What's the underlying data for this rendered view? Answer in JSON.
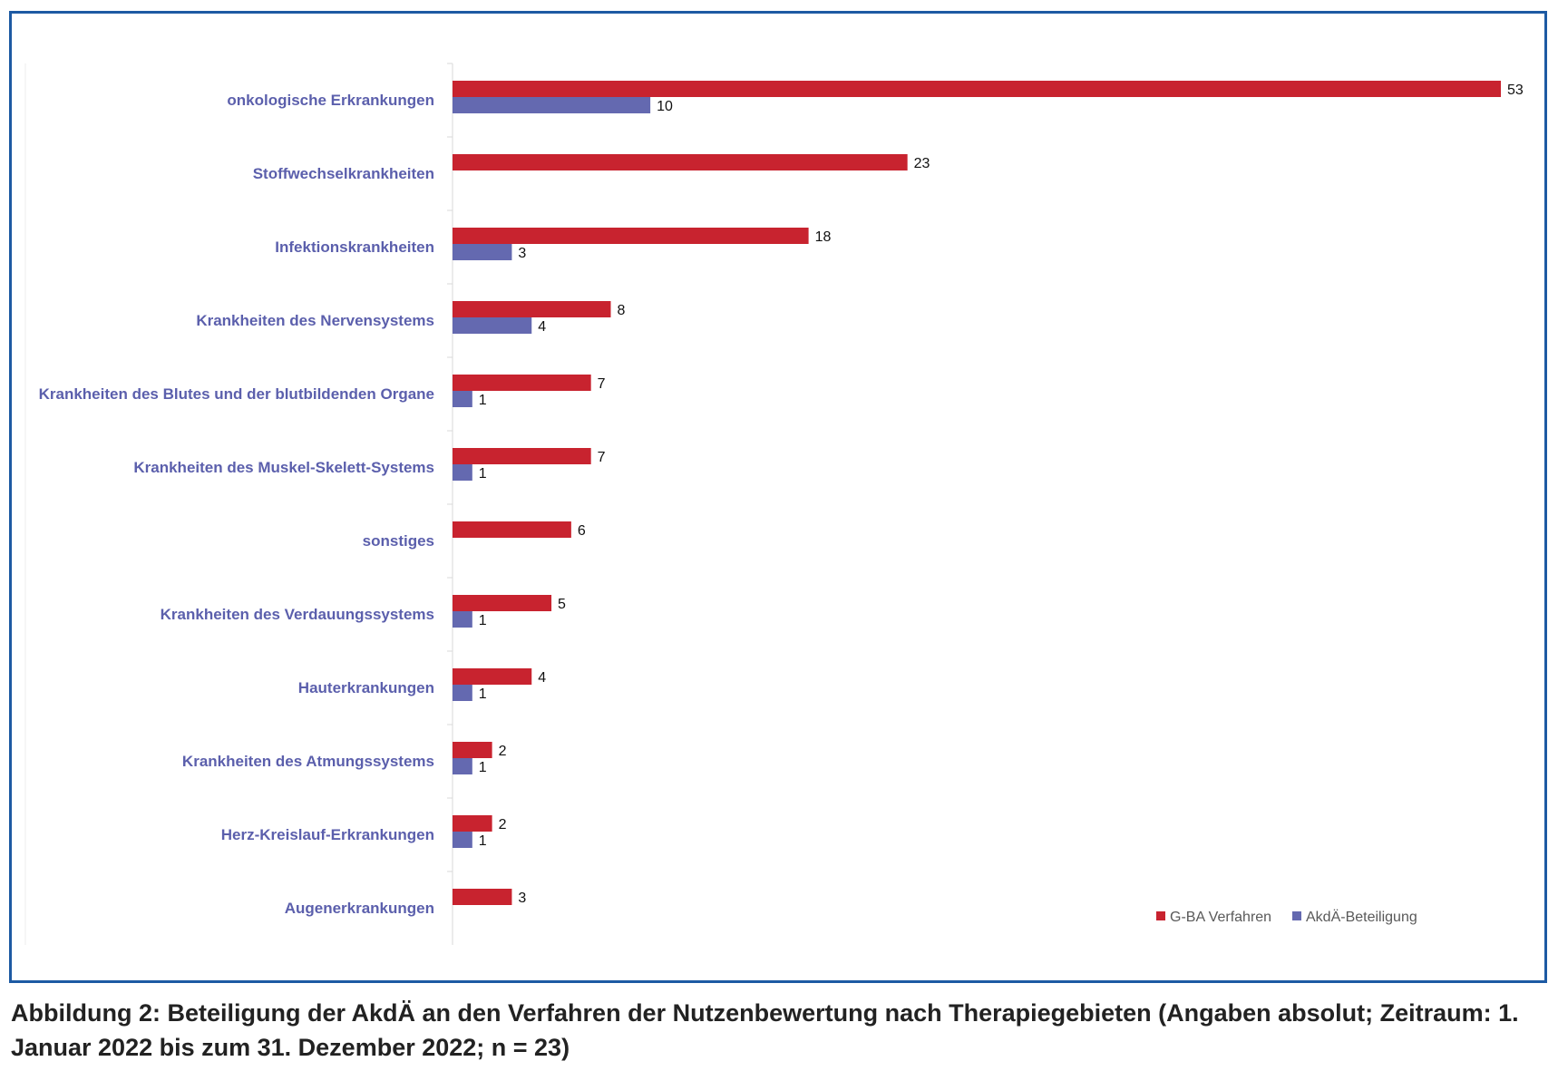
{
  "chart_data": {
    "type": "bar",
    "orientation": "horizontal",
    "categories": [
      "onkologische Erkrankungen",
      "Stoffwechselkrankheiten",
      "Infektionskrankheiten",
      "Krankheiten des Nervensystems",
      "Krankheiten des Blutes und der blutbildenden Organe",
      "Krankheiten des Muskel-Skelett-Systems",
      "sonstiges",
      "Krankheiten des Verdauungssystems",
      "Hauterkrankungen",
      "Krankheiten des Atmungssystems",
      "Herz-Kreislauf-Erkrankungen",
      "Augenerkrankungen"
    ],
    "series": [
      {
        "name": "G-BA Verfahren",
        "color": "#c8232f",
        "values": [
          53,
          23,
          18,
          8,
          7,
          7,
          6,
          5,
          4,
          2,
          2,
          3
        ]
      },
      {
        "name": "AkdÄ-Beteiligung",
        "color": "#6469b0",
        "values": [
          10,
          null,
          3,
          4,
          1,
          1,
          null,
          1,
          1,
          1,
          1,
          null
        ]
      }
    ],
    "xlim": [
      0,
      53
    ],
    "grid": false,
    "legend_position": "bottom-right",
    "category_label_color": "#5b5fac"
  },
  "caption": "Abbildung 2: Beteiligung der AkdÄ an den Verfahren der Nutzenbewertung nach Therapiegebieten (Angaben absolut; Zeitraum: 1. Januar 2022 bis zum 31. Dezember 2022; n = 23)"
}
